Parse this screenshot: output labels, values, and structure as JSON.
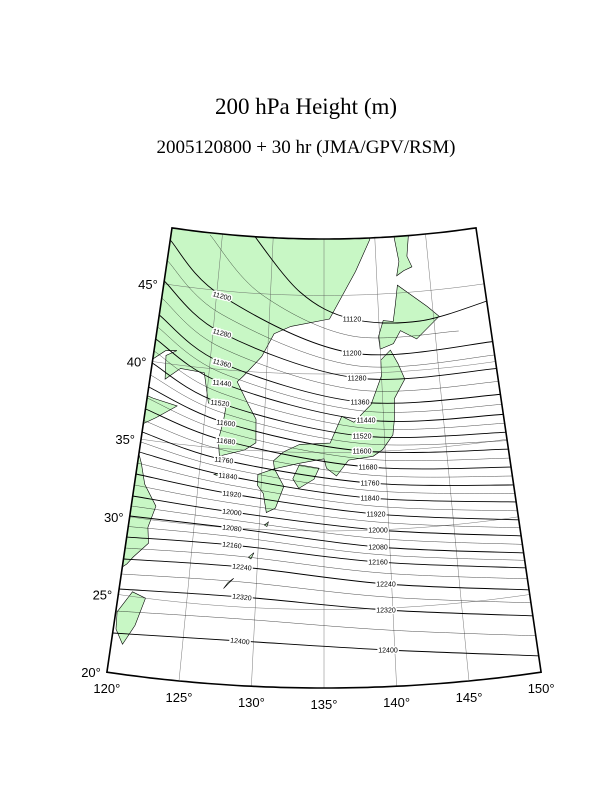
{
  "title": "200 hPa Height (m)",
  "subtitle": "2005120800 + 30 hr (JMA/GPV/RSM)",
  "lat_labels": [
    "20°",
    "25°",
    "30°",
    "35°",
    "40°",
    "45°"
  ],
  "lon_labels": [
    "120°",
    "125°",
    "130°",
    "135°",
    "140°",
    "145°",
    "150°"
  ],
  "contour_levels": [
    11120,
    11200,
    11280,
    11360,
    11440,
    11520,
    11600,
    11680,
    11760,
    11840,
    11920,
    12000,
    12080,
    12160,
    12240,
    12320,
    12400
  ]
}
